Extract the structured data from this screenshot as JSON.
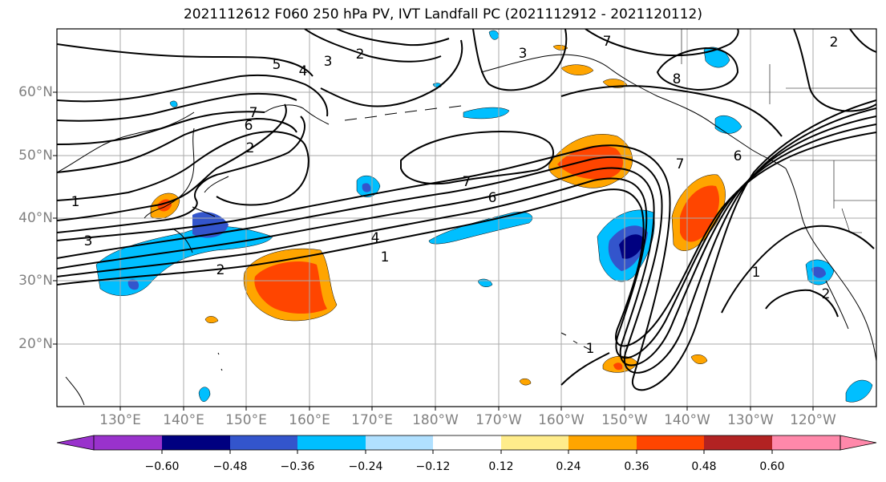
{
  "title": "2021112612 F060 250 hPa PV, IVT Landfall PC (2021112912 - 2021120112)",
  "lat_labels": [
    "60°N",
    "50°N",
    "40°N",
    "30°N",
    "20°N"
  ],
  "lon_labels": [
    "130°E",
    "140°E",
    "150°E",
    "160°E",
    "170°E",
    "180°W",
    "170°W",
    "160°W",
    "150°W",
    "140°W",
    "130°W",
    "120°W"
  ],
  "colorbar": {
    "colors": [
      "#9932cc",
      "#000080",
      "#3355cc",
      "#00bfff",
      "#b0e0ff",
      "#ffffff",
      "#ffec8b",
      "#ffa500",
      "#ff4500",
      "#b22222",
      "#ff88aa"
    ],
    "tick_labels": [
      "−0.60",
      "−0.48",
      "−0.36",
      "−0.24",
      "−0.12",
      "0.12",
      "0.24",
      "0.36",
      "0.48",
      "0.60"
    ]
  },
  "contour_labels": [
    "7",
    "6",
    "5",
    "4",
    "3",
    "2",
    "2",
    "1",
    "7",
    "6",
    "4",
    "3",
    "2",
    "1",
    "7",
    "8",
    "6",
    "2",
    "3",
    "7",
    "1",
    "2",
    "1"
  ]
}
